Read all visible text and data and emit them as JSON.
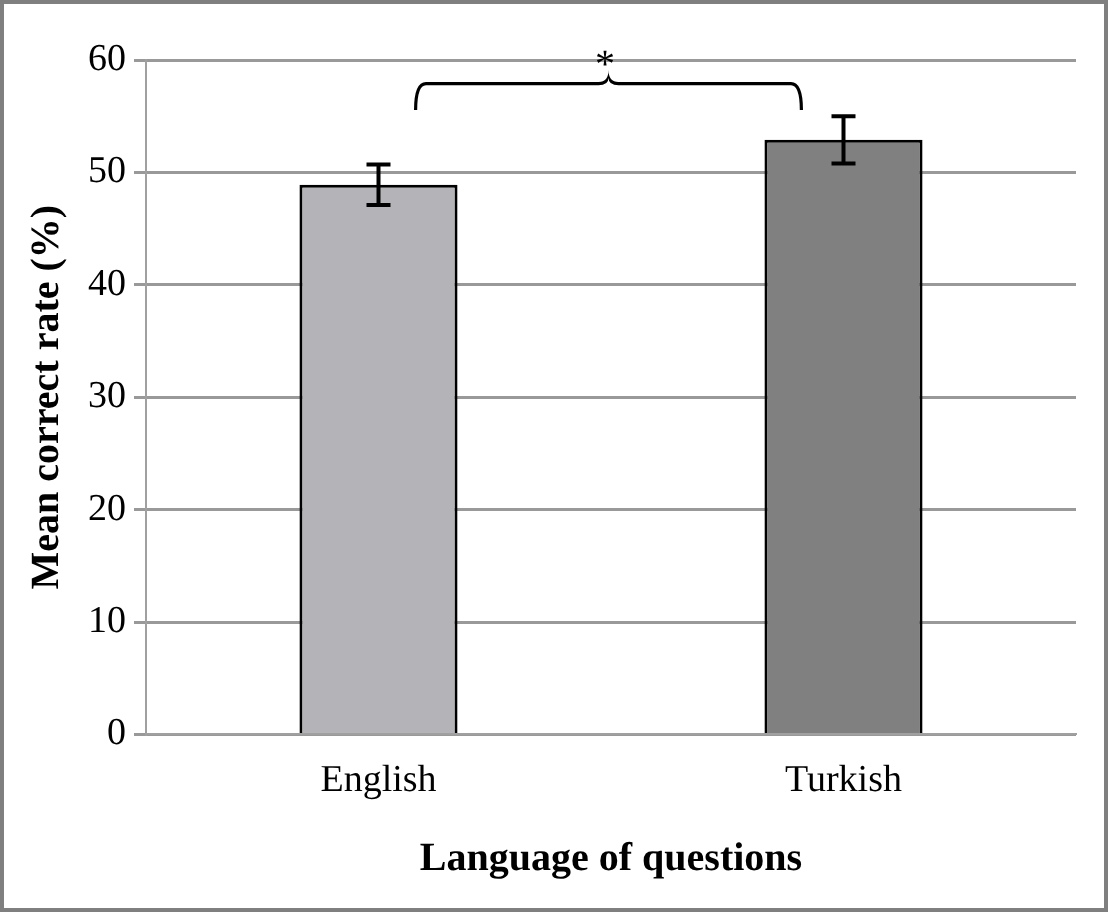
{
  "chart_data": {
    "type": "bar",
    "categories": [
      "English",
      "Turkish"
    ],
    "values": [
      48.9,
      52.9
    ],
    "colors": [
      "#b4b4b8",
      "#808080"
    ],
    "errors": [
      1.8,
      2.1
    ],
    "ylim": [
      0,
      60
    ],
    "yticks": [
      0,
      10,
      20,
      30,
      40,
      50,
      60
    ],
    "grid": "y",
    "legend": false,
    "xlabel": "Language of questions",
    "ylabel": "Mean correct rate (%)",
    "annotations": [
      "*"
    ]
  }
}
